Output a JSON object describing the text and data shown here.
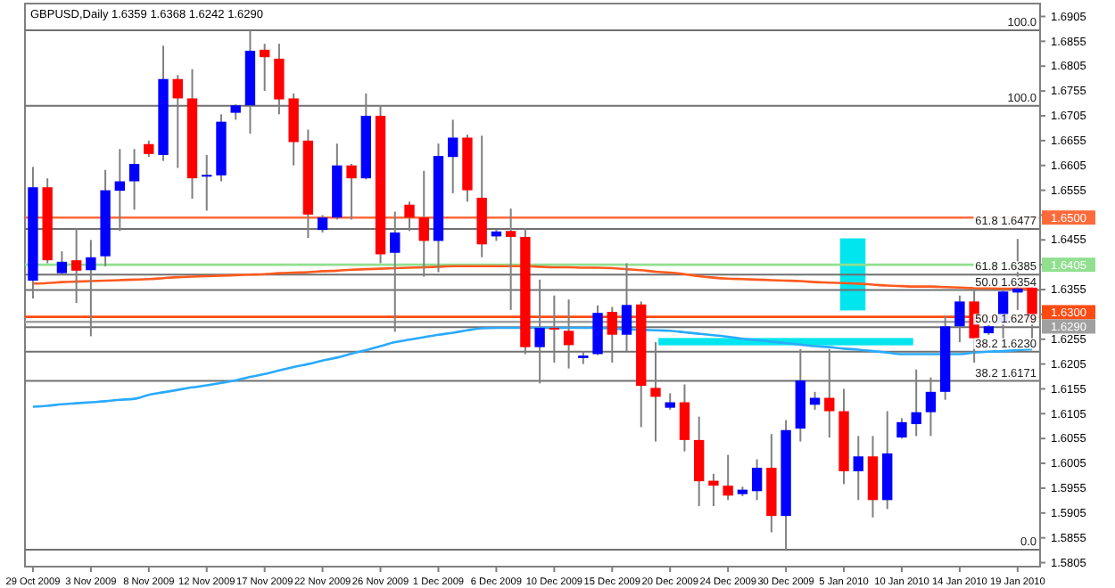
{
  "chart_data": {
    "type": "candlestick",
    "title": "GBPUSD,Daily  1.6359 1.6368 1.6242 1.6290",
    "categories": [
      "29 Oct 2009",
      null,
      null,
      null,
      "3 Nov 2009",
      null,
      null,
      null,
      "8 Nov 2009",
      null,
      null,
      null,
      "12 Nov 2009",
      null,
      null,
      null,
      "17 Nov 2009",
      null,
      null,
      null,
      "22 Nov 2009",
      null,
      null,
      null,
      "26 Nov 2009",
      null,
      null,
      null,
      "1 Dec 2009",
      null,
      null,
      null,
      "6 Dec 2009",
      null,
      null,
      null,
      "10 Dec 2009",
      null,
      null,
      null,
      "15 Dec 2009",
      null,
      null,
      null,
      "20 Dec 2009",
      null,
      null,
      null,
      "24 Dec 2009",
      null,
      null,
      null,
      "30 Dec 2009",
      null,
      null,
      null,
      "5 Jan 2010",
      null,
      null,
      null,
      "10 Jan 2010",
      null,
      null,
      null,
      "14 Jan 2010",
      null,
      null,
      null,
      "19 Jan 2010",
      null
    ],
    "ohlc": [
      [
        1.6373,
        1.6602,
        1.6337,
        1.6561
      ],
      [
        1.6561,
        1.6579,
        1.6408,
        1.6414
      ],
      [
        1.6388,
        1.6432,
        1.6384,
        1.6411
      ],
      [
        1.6414,
        1.6479,
        1.6328,
        1.6393
      ],
      [
        1.6394,
        1.6455,
        1.6261,
        1.642
      ],
      [
        1.6422,
        1.6596,
        1.6402,
        1.6555
      ],
      [
        1.6554,
        1.6638,
        1.6473,
        1.6573
      ],
      [
        1.6573,
        1.6638,
        1.6516,
        1.6608
      ],
      [
        1.6648,
        1.6655,
        1.6622,
        1.6628
      ],
      [
        1.6626,
        1.6846,
        1.6614,
        1.6779
      ],
      [
        1.6779,
        1.6787,
        1.66,
        1.674
      ],
      [
        1.674,
        1.6799,
        1.6538,
        1.6579
      ],
      [
        1.6583,
        1.6626,
        1.6514,
        1.6586
      ],
      [
        1.6585,
        1.6708,
        1.6573,
        1.6693
      ],
      [
        1.6711,
        1.6728,
        1.6697,
        1.6726
      ],
      [
        1.6726,
        1.6877,
        1.6669,
        1.6836
      ],
      [
        1.6838,
        1.685,
        1.6755,
        1.6823
      ],
      [
        1.682,
        1.685,
        1.6708,
        1.6738
      ],
      [
        1.674,
        1.675,
        1.6605,
        1.6652
      ],
      [
        1.6655,
        1.6677,
        1.6459,
        1.6506
      ],
      [
        1.6475,
        1.6505,
        1.647,
        1.65
      ],
      [
        1.65,
        1.6649,
        1.6496,
        1.6605
      ],
      [
        1.6605,
        1.6608,
        1.6496,
        1.6579
      ],
      [
        1.6579,
        1.675,
        1.6577,
        1.6705
      ],
      [
        1.6705,
        1.6726,
        1.6408,
        1.6426
      ],
      [
        1.6429,
        1.6512,
        1.627,
        1.647
      ],
      [
        1.6526,
        1.6532,
        1.6473,
        1.65
      ],
      [
        1.65,
        1.6594,
        1.6381,
        1.6453
      ],
      [
        1.6453,
        1.6649,
        1.639,
        1.6624
      ],
      [
        1.6622,
        1.6697,
        1.6549,
        1.6661
      ],
      [
        1.6661,
        1.6667,
        1.6532,
        1.6555
      ],
      [
        1.654,
        1.6665,
        1.642,
        1.6446
      ],
      [
        1.6462,
        1.6476,
        1.6453,
        1.6472
      ],
      [
        1.6473,
        1.6518,
        1.6314,
        1.6461
      ],
      [
        1.6461,
        1.6479,
        1.6225,
        1.6239
      ],
      [
        1.6239,
        1.6375,
        1.6166,
        1.6278
      ],
      [
        1.6278,
        1.6343,
        1.6208,
        1.6275
      ],
      [
        1.6272,
        1.6335,
        1.6196,
        1.6243
      ],
      [
        1.6217,
        1.6231,
        1.6205,
        1.6222
      ],
      [
        1.6225,
        1.6323,
        1.6223,
        1.6308
      ],
      [
        1.631,
        1.632,
        1.6208,
        1.6264
      ],
      [
        1.6264,
        1.6408,
        1.6231,
        1.6324
      ],
      [
        1.6325,
        1.6331,
        1.6078,
        1.6161
      ],
      [
        1.6157,
        1.6249,
        1.6049,
        1.6139
      ],
      [
        1.6117,
        1.6146,
        1.6113,
        1.6128
      ],
      [
        1.6128,
        1.6164,
        1.6029,
        1.6052
      ],
      [
        1.6052,
        1.6099,
        1.5919,
        1.5969
      ],
      [
        1.597,
        1.5984,
        1.5919,
        1.596
      ],
      [
        1.596,
        1.6022,
        1.5931,
        1.594
      ],
      [
        1.5943,
        1.5958,
        1.5939,
        1.5952
      ],
      [
        1.5949,
        1.6013,
        1.5931,
        1.5996
      ],
      [
        1.5996,
        1.6064,
        1.5866,
        1.5899
      ],
      [
        1.5899,
        1.6092,
        1.5831,
        1.6072
      ],
      [
        1.6075,
        1.6235,
        1.6049,
        1.6172
      ],
      [
        1.6123,
        1.6149,
        1.6113,
        1.6137
      ],
      [
        1.6137,
        1.6235,
        1.6057,
        1.611
      ],
      [
        1.611,
        1.6155,
        1.5963,
        1.5989
      ],
      [
        1.5989,
        1.606,
        1.5931,
        1.6019
      ],
      [
        1.6019,
        1.606,
        1.5896,
        1.5931
      ],
      [
        1.5931,
        1.611,
        1.5913,
        1.6025
      ],
      [
        1.6057,
        1.6096,
        1.6055,
        1.6088
      ],
      [
        1.6084,
        1.6194,
        1.606,
        1.6108
      ],
      [
        1.6108,
        1.6178,
        1.606,
        1.6149
      ],
      [
        1.6149,
        1.6302,
        1.6133,
        1.6281
      ],
      [
        1.6281,
        1.6343,
        1.6249,
        1.6331
      ],
      [
        1.6331,
        1.6357,
        1.6208,
        1.6257
      ],
      [
        1.6267,
        1.6284,
        1.6264,
        1.6281
      ],
      [
        1.6287,
        1.6355,
        1.6249,
        1.6351
      ],
      [
        1.6349,
        1.6457,
        1.6314,
        1.6357
      ],
      [
        1.6359,
        1.6368,
        1.6242,
        1.629
      ]
    ],
    "colors": [
      "#0000ff",
      "#ff0000",
      "#0000ff",
      "#ff0000",
      "#0000ff",
      "#0000ff",
      "#0000ff",
      "#0000ff",
      "#ff0000",
      "#0000ff",
      "#ff0000",
      "#ff0000",
      "#0000ff",
      "#0000ff",
      "#0000ff",
      "#0000ff",
      "#ff0000",
      "#ff0000",
      "#ff0000",
      "#ff0000",
      "#0000ff",
      "#0000ff",
      "#ff0000",
      "#0000ff",
      "#ff0000",
      "#0000ff",
      "#ff0000",
      "#ff0000",
      "#0000ff",
      "#0000ff",
      "#ff0000",
      "#ff0000",
      "#0000ff",
      "#ff0000",
      "#ff0000",
      "#0000ff",
      "#ff0000",
      "#ff0000",
      "#0000ff",
      "#0000ff",
      "#ff0000",
      "#0000ff",
      "#ff0000",
      "#ff0000",
      "#0000ff",
      "#ff0000",
      "#ff0000",
      "#ff0000",
      "#ff0000",
      "#0000ff",
      "#0000ff",
      "#ff0000",
      "#0000ff",
      "#0000ff",
      "#0000ff",
      "#ff0000",
      "#ff0000",
      "#0000ff",
      "#ff0000",
      "#0000ff",
      "#0000ff",
      "#0000ff",
      "#0000ff",
      "#0000ff",
      "#0000ff",
      "#ff0000",
      "#0000ff",
      "#0000ff",
      "#0000ff",
      "#ff0000"
    ],
    "series": [
      {
        "type": "line",
        "color": "#ff5a1e",
        "values": [
          1.6367,
          1.6368,
          1.637,
          1.6371,
          1.6372,
          1.6373,
          1.6374,
          1.6375,
          1.6376,
          1.6378,
          1.638,
          1.6381,
          1.6382,
          1.6383,
          1.6384,
          1.6385,
          1.6386,
          1.6388,
          1.6389,
          1.639,
          1.6392,
          1.6393,
          1.6395,
          1.6396,
          1.6397,
          1.6398,
          1.6399,
          1.64,
          1.6401,
          1.6402,
          1.6402,
          1.6402,
          1.6402,
          1.6402,
          1.6402,
          1.6401,
          1.64,
          1.64,
          1.6399,
          1.6399,
          1.6398,
          1.6396,
          1.6394,
          1.6391,
          1.6389,
          1.6386,
          1.6382,
          1.6379,
          1.6377,
          1.6376,
          1.6375,
          1.6374,
          1.6373,
          1.6372,
          1.637,
          1.6369,
          1.6368,
          1.6367,
          1.6365,
          1.6363,
          1.6362,
          1.6361,
          1.6361,
          1.636,
          1.6359,
          1.6358,
          1.6358,
          1.6357,
          1.6357,
          1.6357
        ]
      },
      {
        "type": "line",
        "color": "#29aaff",
        "values": [
          1.6119,
          1.6121,
          1.6124,
          1.6126,
          1.6128,
          1.613,
          1.6133,
          1.6135,
          1.6143,
          1.6148,
          1.6153,
          1.6158,
          1.6162,
          1.6167,
          1.6172,
          1.6179,
          1.6185,
          1.6192,
          1.6199,
          1.6205,
          1.6212,
          1.6218,
          1.6226,
          1.6233,
          1.6241,
          1.6249,
          1.6254,
          1.6259,
          1.6264,
          1.6268,
          1.6273,
          1.6277,
          1.6278,
          1.6278,
          1.6278,
          1.6278,
          1.6278,
          1.6278,
          1.6278,
          1.6278,
          1.6276,
          1.6275,
          1.6274,
          1.6273,
          1.6272,
          1.6269,
          1.6266,
          1.6263,
          1.626,
          1.6256,
          1.6253,
          1.625,
          1.6247,
          1.6244,
          1.6241,
          1.6239,
          1.6236,
          1.6234,
          1.6231,
          1.6228,
          1.6225,
          1.6225,
          1.6225,
          1.6225,
          1.6225,
          1.6228,
          1.623,
          1.6231,
          1.6233,
          1.6235
        ]
      }
    ],
    "annotations": [
      {
        "text": "100.0",
        "y": 1.6877
      },
      {
        "text": "100.0",
        "y": 1.6725
      },
      {
        "text": "0.0",
        "y": 1.5831
      }
    ],
    "ylim": [
      1.5797,
      1.6931
    ],
    "yticks": [
      1.5805,
      1.5855,
      1.5905,
      1.5955,
      1.6005,
      1.6055,
      1.6105,
      1.6155,
      1.6205,
      1.6255,
      {
        "value": 1.6305,
        "label": null
      },
      1.6355,
      {
        "value": 1.6405,
        "label": null
      },
      1.6455,
      {
        "value": 1.6505,
        "label": null
      },
      1.6555,
      1.6605,
      1.6655,
      1.6705,
      1.6755,
      1.6805,
      1.6855,
      1.6905
    ],
    "ref_lines": [
      {
        "axis": "y",
        "value": 1.6877
      },
      {
        "axis": "y",
        "value": 1.6725
      },
      {
        "axis": "y",
        "value": 1.6477,
        "label": "61.8  1.6477"
      },
      {
        "axis": "y",
        "value": 1.6385,
        "label": "61.8  1.6385"
      },
      {
        "axis": "y",
        "value": 1.6354,
        "label": "50.0  1.6354"
      },
      {
        "axis": "y",
        "value": 1.6279,
        "label": "50.0  1.6279"
      },
      {
        "axis": "y",
        "value": 1.623,
        "label": "38.2  1.6230"
      },
      {
        "axis": "y",
        "value": 1.6171,
        "label": "38.2  1.6171"
      },
      {
        "axis": "y",
        "value": 1.5831
      },
      {
        "axis": "y",
        "value": 1.65,
        "label": "1.6500",
        "color": "#ff6a3a"
      },
      {
        "axis": "y",
        "value": 1.6405,
        "label": "1.6405",
        "color": "#90e090"
      },
      {
        "axis": "y",
        "value": 1.63,
        "label": "1.6300",
        "color": "#ff4a10"
      },
      {
        "axis": "y",
        "value": 1.629,
        "label": "1.6290",
        "color": "#a0a0a0"
      }
    ]
  }
}
